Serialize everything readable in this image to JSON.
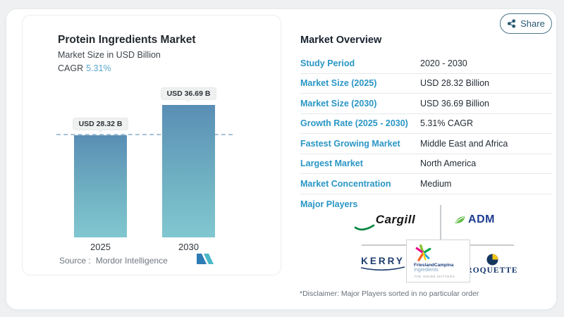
{
  "card": {
    "share_label": "Share"
  },
  "chart": {
    "title": "Protein Ingredients Market",
    "subtitle": "Market Size in USD Billion",
    "cagr_label": "CAGR",
    "cagr_value": "5.31%",
    "source_label": "Source :",
    "source_value": "Mordor Intelligence"
  },
  "chart_data": {
    "type": "bar",
    "title": "Protein Ingredients Market",
    "ylabel": "Market Size in USD Billion",
    "categories": [
      "2025",
      "2030"
    ],
    "values": [
      28.32,
      36.69
    ],
    "bar_labels": [
      "USD 28.32 B",
      "USD 36.69 B"
    ],
    "cagr": "5.31%",
    "reference_line": {
      "value": 28.32,
      "style": "dashed"
    },
    "legend": "none",
    "grid": "off",
    "colors": {
      "bar_top": "#5a8eb5",
      "bar_bottom": "#81c7d0",
      "dashline": "#a6c3d6"
    }
  },
  "overview": {
    "heading": "Market Overview",
    "rows": [
      {
        "label": "Study Period",
        "value": "2020 - 2030"
      },
      {
        "label": "Market Size (2025)",
        "value": "USD 28.32 Billion"
      },
      {
        "label": "Market Size (2030)",
        "value": "USD 36.69 Billion"
      },
      {
        "label": "Growth Rate (2025 - 2030)",
        "value": "5.31% CAGR"
      },
      {
        "label": "Fastest Growing Market",
        "value": "Middle East and Africa"
      },
      {
        "label": "Largest Market",
        "value": "North America"
      },
      {
        "label": "Market Concentration",
        "value": "Medium"
      }
    ],
    "major_players_label": "Major Players",
    "disclaimer": "*Disclaimer: Major Players sorted in no particular order"
  },
  "logos": {
    "cargill": "Cargill",
    "adm": "ADM",
    "kerry": "KERRY",
    "roquette": "ROQUETTE",
    "frieslandcampina_name": "FrieslandCampina",
    "frieslandcampina_sub": "Ingredients",
    "frieslandcampina_tagline": "THE INSIDE MATTERS"
  },
  "colors": {
    "accent_blue_label": "#2a96c5",
    "cagr_value": "#5ba7cd",
    "share_button": "#2b5b71",
    "value_text": "#242d36"
  }
}
